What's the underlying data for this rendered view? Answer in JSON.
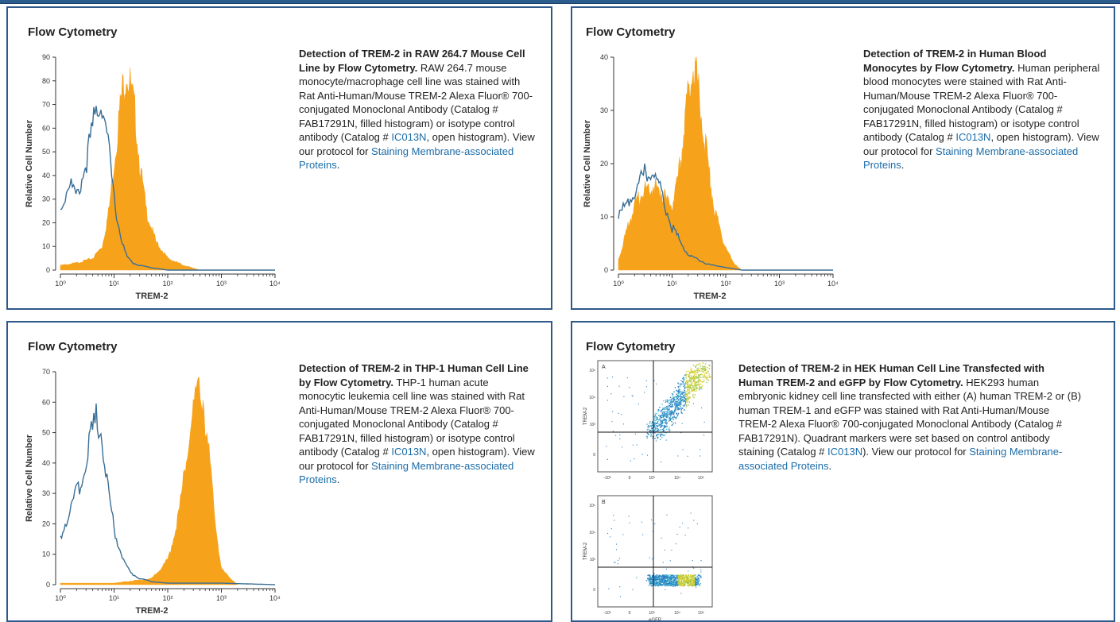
{
  "colors": {
    "frame": "#2d5a8a",
    "filled": "#f7a21b",
    "open": "#3a6f96",
    "link": "#1b6ca8"
  },
  "cards": [
    {
      "title": "Flow Cytometry",
      "heading": "Detection of TREM-2 in RAW 264.7 Mouse Cell Line by Flow Cytometry.",
      "body1": " RAW 264.7 mouse monocyte/macrophage cell line was stained with Rat Anti-Human/Mouse TREM-2 Alexa Fluor® 700-conjugated Monoclonal Antibody (Catalog # FAB17291N, filled histogram) or isotype control antibody (Catalog # ",
      "link1": "IC013N",
      "body2": ", open histogram). View our protocol for ",
      "link2": "Staining Membrane-associated Proteins",
      "body3": "."
    },
    {
      "title": "Flow Cytometry",
      "heading": "Detection of TREM-2 in Human Blood Monocytes by Flow Cytometry.",
      "body1": " Human peripheral blood monocytes were stained with Rat Anti-Human/Mouse TREM-2 Alexa Fluor® 700-conjugated Monoclonal Antibody (Catalog # FAB17291N, filled histogram) or isotype control antibody (Catalog # ",
      "link1": "IC013N",
      "body2": ", open histogram). View our protocol for ",
      "link2": "Staining Membrane-associated Proteins",
      "body3": "."
    },
    {
      "title": "Flow Cytometry",
      "heading": "Detection of TREM-2 in THP-1 Human Cell Line by Flow Cytometry.",
      "body1": " THP-1 human acute monocytic leukemia cell line was stained with Rat Anti-Human/Mouse TREM-2 Alexa Fluor® 700-conjugated Monoclonal Antibody (Catalog # FAB17291N, filled histogram) or isotype control antibody (Catalog # ",
      "link1": "IC013N",
      "body2": ", open histogram). View our protocol for ",
      "link2": "Staining Membrane-associated Proteins",
      "body3": "."
    },
    {
      "title": "Flow Cytometry",
      "heading": "Detection of TREM-2 in HEK Human Cell Line Transfected with Human TREM-2 and eGFP by Flow Cytometry.",
      "body1": " HEK293 human embryonic kidney cell line transfected with either (A) human TREM-2 or (B) human TREM-1 and eGFP was stained with Rat Anti-Human/Mouse TREM-2 Alexa Fluor® 700-conjugated Monoclonal Antibody (Catalog # FAB17291N). Quadrant markers were set based on control antibody staining (Catalog # ",
      "link1": "IC013N",
      "body2": "). View our protocol for ",
      "link2": "Staining Membrane-associated Proteins",
      "body3": "."
    }
  ],
  "chart_data": [
    {
      "type": "area",
      "xlabel": "TREM-2",
      "ylabel": "Relative Cell Number",
      "x_scale": "log",
      "xlim": [
        1,
        10000
      ],
      "ylim": [
        0,
        90
      ],
      "x_ticks": [
        "10⁰",
        "10¹",
        "10²",
        "10³",
        "10⁴"
      ],
      "y_ticks": [
        "0",
        "10",
        "20",
        "30",
        "40",
        "50",
        "60",
        "70",
        "80",
        "90"
      ],
      "series": [
        {
          "style": "filled",
          "x": [
            1,
            2,
            4,
            6,
            8,
            10,
            12,
            14,
            17,
            20,
            25,
            30,
            40,
            60,
            100,
            200,
            400
          ],
          "values": [
            2,
            3,
            5,
            10,
            25,
            45,
            62,
            75,
            85,
            78,
            65,
            45,
            25,
            12,
            5,
            2,
            0
          ]
        },
        {
          "style": "open",
          "x": [
            1,
            1.5,
            2,
            3,
            4,
            5,
            6,
            7,
            8,
            10,
            13,
            17,
            22,
            30,
            50,
            100,
            1000,
            10000
          ],
          "values": [
            25,
            38,
            30,
            45,
            60,
            70,
            72,
            60,
            50,
            30,
            15,
            6,
            3,
            2,
            1,
            0,
            0,
            0
          ]
        }
      ]
    },
    {
      "type": "area",
      "xlabel": "TREM-2",
      "ylabel": "Relative Cell Number",
      "x_scale": "log",
      "xlim": [
        1,
        10000
      ],
      "ylim": [
        0,
        40
      ],
      "x_ticks": [
        "10⁰",
        "10¹",
        "10²",
        "10³",
        "10⁴"
      ],
      "y_ticks": [
        "0",
        "10",
        "20",
        "30",
        "40"
      ],
      "series": [
        {
          "style": "filled",
          "x": [
            1,
            1.5,
            2,
            3,
            4,
            6,
            8,
            10,
            12,
            15,
            18,
            22,
            26,
            30,
            40,
            60,
            100,
            150,
            200
          ],
          "values": [
            2,
            8,
            12,
            15,
            16,
            15,
            13,
            12,
            15,
            22,
            30,
            36,
            39,
            35,
            25,
            12,
            4,
            1,
            0
          ]
        },
        {
          "style": "open",
          "x": [
            1,
            2,
            3,
            4,
            5,
            6,
            8,
            10,
            15,
            20,
            30,
            50,
            100,
            200,
            10000
          ],
          "values": [
            10,
            15,
            18,
            19,
            17,
            15,
            11,
            8,
            5,
            3,
            2,
            1,
            0.5,
            0,
            0
          ]
        }
      ]
    },
    {
      "type": "area",
      "xlabel": "TREM-2",
      "ylabel": "Relative Cell Number",
      "x_scale": "log",
      "xlim": [
        1,
        10000
      ],
      "ylim": [
        0,
        70
      ],
      "x_ticks": [
        "10⁰",
        "10¹",
        "10²",
        "10³",
        "10⁴"
      ],
      "y_ticks": [
        "0",
        "10",
        "20",
        "30",
        "40",
        "50",
        "60",
        "70"
      ],
      "series": [
        {
          "style": "filled",
          "x": [
            1,
            10,
            50,
            100,
            150,
            200,
            250,
            300,
            350,
            400,
            450,
            500,
            600,
            800,
            1000,
            2000
          ],
          "values": [
            0.5,
            0.5,
            2,
            8,
            20,
            35,
            48,
            58,
            64,
            66,
            62,
            55,
            40,
            18,
            5,
            0
          ]
        },
        {
          "style": "open",
          "x": [
            1,
            1.5,
            2,
            3,
            4,
            5,
            6,
            8,
            10,
            15,
            20,
            30,
            50,
            100,
            1000,
            10000
          ],
          "values": [
            15,
            25,
            30,
            40,
            50,
            55,
            48,
            30,
            18,
            8,
            4,
            2,
            1,
            0.5,
            0.5,
            0
          ]
        }
      ]
    },
    {
      "type": "scatter",
      "panels": [
        {
          "label": "A",
          "xlabel": "",
          "ylabel": "TREM-2",
          "x_ticks": [
            "-10³",
            "0",
            "10³",
            "10⁴",
            "10⁵"
          ],
          "y_ticks": [
            "0",
            "10³",
            "10⁴",
            "10⁵"
          ],
          "population": "diagonal, eGFP+ TREM-2+ (upper-right quadrant)"
        },
        {
          "label": "B",
          "xlabel": "eGFP",
          "ylabel": "TREM-2",
          "x_ticks": [
            "-10³",
            "0",
            "10³",
            "10⁴",
            "10⁵"
          ],
          "y_ticks": [
            "0",
            "10³",
            "10⁴",
            "10⁵"
          ],
          "population": "eGFP+ TREM-2- (lower-right quadrant)"
        }
      ]
    }
  ]
}
